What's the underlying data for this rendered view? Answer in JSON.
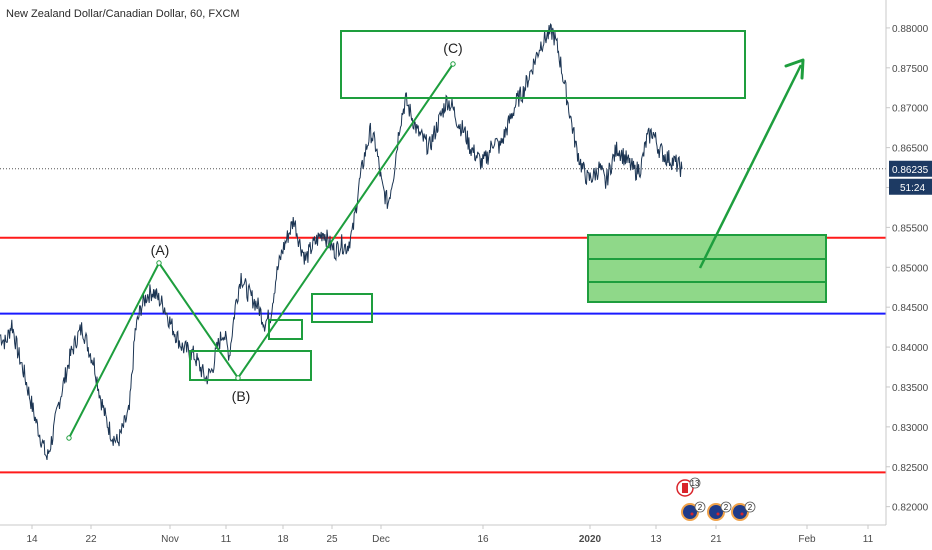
{
  "chart_data": {
    "type": "line",
    "title": "New Zealand Dollar/Canadian Dollar, 60, FXCM",
    "x_ticks": [
      "14",
      "22",
      "Nov",
      "11",
      "18",
      "25",
      "Dec",
      "16",
      "2020",
      "13",
      "21",
      "Feb",
      "11"
    ],
    "x_ticks_bold": [
      "2020"
    ],
    "y_ticks": [
      "0.88000",
      "0.87500",
      "0.87000",
      "0.86500",
      "0.86000",
      "0.85500",
      "0.85000",
      "0.84500",
      "0.84000",
      "0.83500",
      "0.83000",
      "0.82500",
      "0.82000"
    ],
    "ylim": [
      0.8177,
      0.8835
    ],
    "last_price": "0.86235",
    "countdown": "51:24",
    "series": [
      {
        "values": [
          0.8415,
          0.8405,
          0.843,
          0.8395,
          0.837,
          0.834,
          0.831,
          0.8285,
          0.826,
          0.829,
          0.833,
          0.836,
          0.839,
          0.841,
          0.8425,
          0.84,
          0.838,
          0.834,
          0.831,
          0.829,
          0.828,
          0.83,
          0.832,
          0.842,
          0.845,
          0.8465,
          0.847,
          0.846,
          0.845,
          0.843,
          0.8415,
          0.84,
          0.8395,
          0.839,
          0.8375,
          0.836,
          0.837,
          0.84,
          0.842,
          0.839,
          0.845,
          0.849,
          0.847,
          0.846,
          0.845,
          0.843,
          0.844,
          0.849,
          0.852,
          0.854,
          0.856,
          0.853,
          0.851,
          0.8525,
          0.8535,
          0.8545,
          0.853,
          0.852,
          0.853,
          0.8525,
          0.8545,
          0.86,
          0.864,
          0.867,
          0.865,
          0.86,
          0.858,
          0.862,
          0.868,
          0.871,
          0.869,
          0.867,
          0.866,
          0.865,
          0.867,
          0.869,
          0.871,
          0.87,
          0.868,
          0.867,
          0.865,
          0.864,
          0.863,
          0.864,
          0.866,
          0.865,
          0.867,
          0.869,
          0.871,
          0.872,
          0.874,
          0.876,
          0.878,
          0.879,
          0.8795,
          0.877,
          0.873,
          0.869,
          0.865,
          0.8625,
          0.861,
          0.8615,
          0.8625,
          0.8605,
          0.863,
          0.865,
          0.864,
          0.863,
          0.862,
          0.8625,
          0.866,
          0.867,
          0.865,
          0.864,
          0.8635,
          0.863,
          0.8623
        ]
      }
    ],
    "horizontal_lines": [
      {
        "value": 0.8537,
        "color": "#ff1a1a"
      },
      {
        "value": 0.8442,
        "color": "#1a1aff"
      },
      {
        "value": 0.8243,
        "color": "#ff1a1a"
      },
      {
        "value": 0.86235,
        "color": "#555555",
        "style": "dotted"
      }
    ],
    "wave_labels": [
      "(A)",
      "(B)",
      "(C)"
    ],
    "colors": {
      "price": "#1c3553",
      "annotation": "#1e9e3e",
      "zone_fill": "#8fd889",
      "badge_bg": "#1d3a63",
      "axis_text": "#4a4a4a"
    },
    "events": [
      {
        "icon": "canada-flag-icon",
        "count": "13"
      },
      {
        "icon": "nz-flag-icon",
        "count": "2"
      },
      {
        "icon": "nz-flag-icon",
        "count": "2"
      },
      {
        "icon": "nz-flag-icon",
        "count": "2"
      }
    ]
  }
}
